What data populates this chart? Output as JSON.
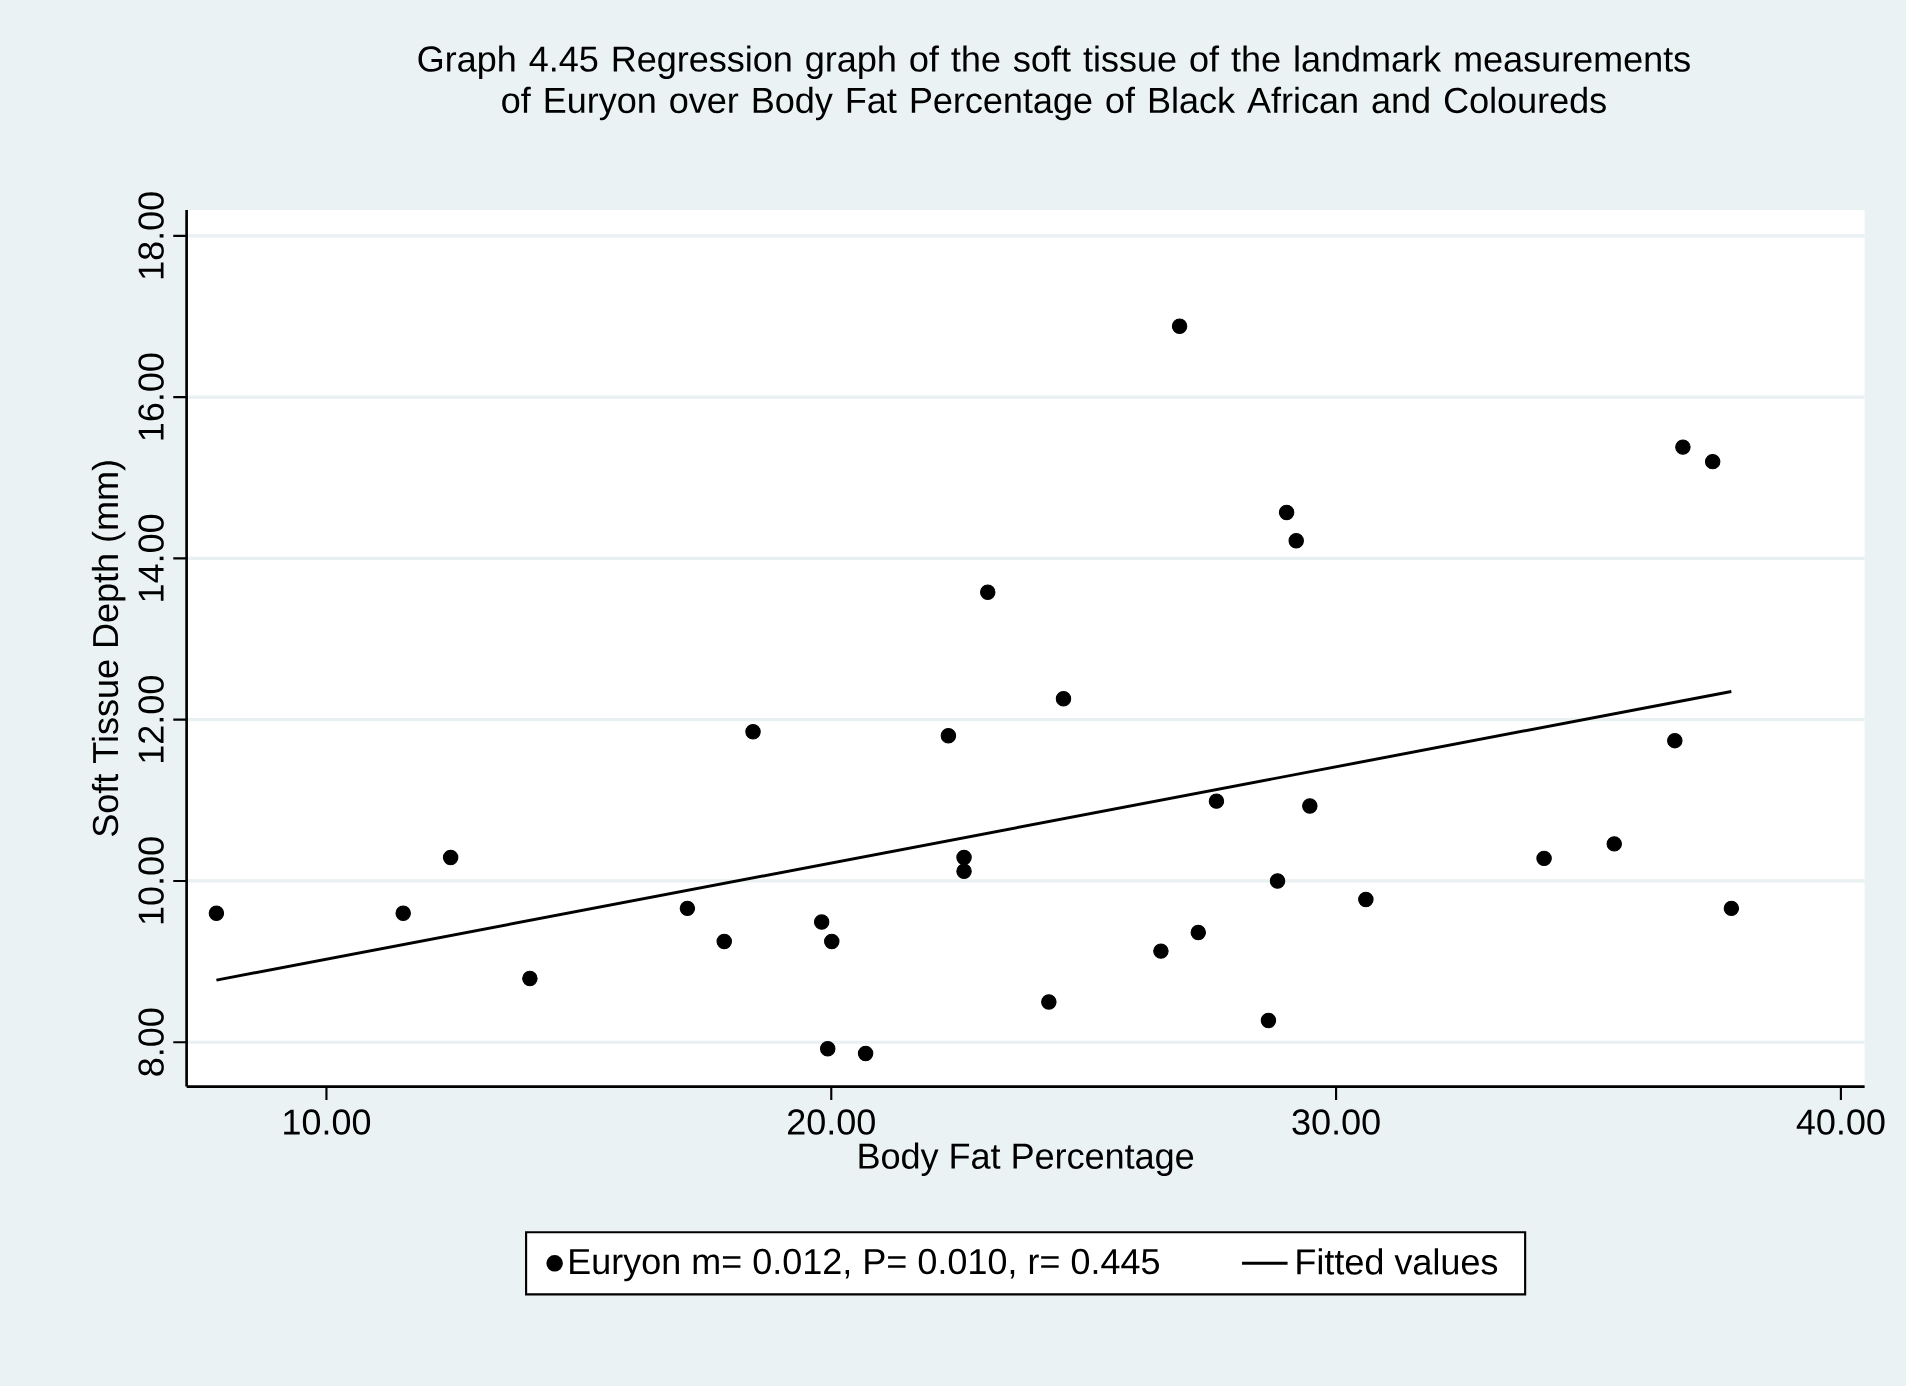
{
  "chart_data": {
    "type": "scatter",
    "title": "Graph 4.45 Regression graph of the soft tissue of the landmark measurements of Euryon over Body Fat Percentage of Black African and Coloureds",
    "xlabel": "Body Fat Percentage",
    "ylabel": "Soft Tissue Depth (mm)",
    "series": [
      {
        "name": "Euryon m= 0.012, P= 0.010, r= 0.445",
        "color": "#000000",
        "marker": "circle",
        "x": [
          7.82,
          11.52,
          12.46,
          14.03,
          17.15,
          17.88,
          18.45,
          19.81,
          20.01,
          19.93,
          20.68,
          22.32,
          22.63,
          22.63,
          23.1,
          24.31,
          24.6,
          26.53,
          26.9,
          27.27,
          27.63,
          28.66,
          28.84,
          29.02,
          29.21,
          29.48,
          30.59,
          34.12,
          35.51,
          36.71,
          36.87,
          37.46,
          37.83
        ],
        "values": [
          9.6,
          9.6,
          10.29,
          8.79,
          9.66,
          9.25,
          11.85,
          9.49,
          9.25,
          7.92,
          7.86,
          11.8,
          10.29,
          10.12,
          13.58,
          8.5,
          12.26,
          9.13,
          16.88,
          9.36,
          10.99,
          8.27,
          10.0,
          14.57,
          14.22,
          10.93,
          9.77,
          10.28,
          10.46,
          11.74,
          15.38,
          15.2,
          9.66
        ]
      },
      {
        "name": "Fitted values",
        "type": "line",
        "color": "#000000",
        "marker": "none",
        "line_style": "solid",
        "x": [
          7.82,
          37.83
        ],
        "values": [
          8.77,
          12.35
        ]
      }
    ],
    "xlim": [
      7.23,
      40.47
    ],
    "ylim": [
      7.45,
      18.32
    ],
    "xticks": [
      {
        "value": 10,
        "label": "10.00"
      },
      {
        "value": 20,
        "label": "20.00"
      },
      {
        "value": 30,
        "label": "30.00"
      },
      {
        "value": 40,
        "label": "40.00"
      }
    ],
    "yticks": [
      {
        "value": 8,
        "label": "8.00"
      },
      {
        "value": 10,
        "label": "10.00"
      },
      {
        "value": 12,
        "label": "12.00"
      },
      {
        "value": 14,
        "label": "14.00"
      },
      {
        "value": 16,
        "label": "16.00"
      },
      {
        "value": 18,
        "label": "18.00"
      }
    ],
    "grid": "y",
    "legend": "bottom"
  }
}
